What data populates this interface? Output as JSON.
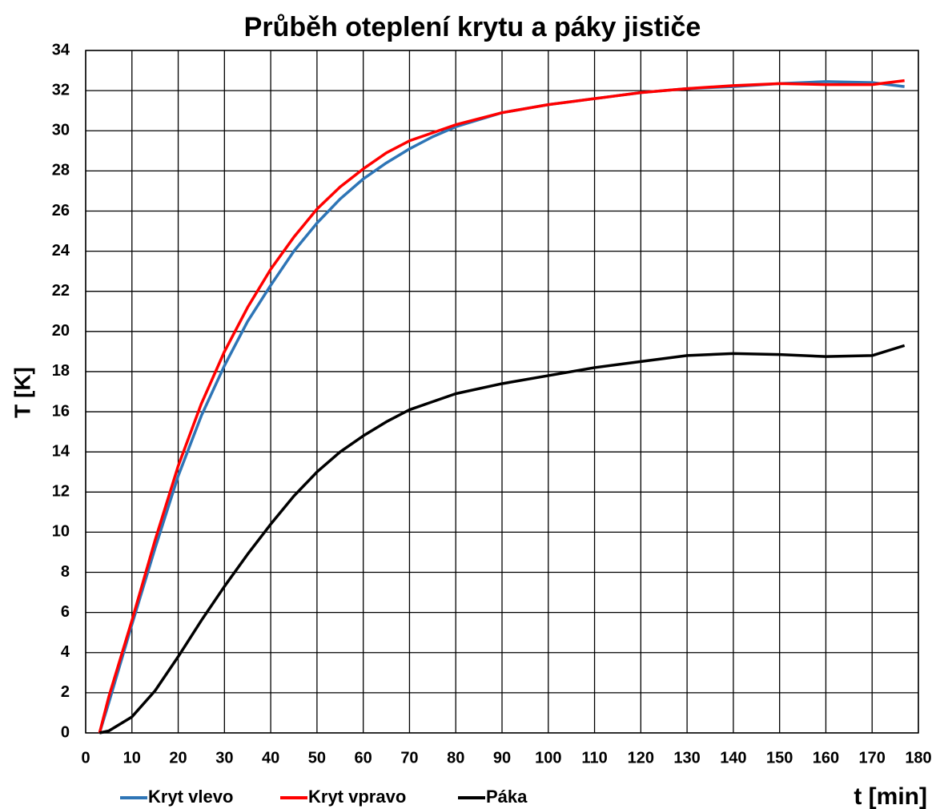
{
  "chart_data": {
    "type": "line",
    "title": "Průběh oteplení krytu a páky jističe",
    "x_label": "t [min]",
    "y_label": "T [K]",
    "x": [
      3,
      5,
      10,
      15,
      20,
      25,
      30,
      35,
      40,
      45,
      50,
      55,
      60,
      65,
      70,
      75,
      80,
      90,
      100,
      110,
      120,
      130,
      140,
      150,
      160,
      170,
      177
    ],
    "series": [
      {
        "name": "Kryt vlevo",
        "color": "#2e75b6",
        "values": [
          0,
          1.5,
          5.4,
          9.2,
          12.8,
          15.8,
          18.3,
          20.5,
          22.3,
          24,
          25.4,
          26.6,
          27.6,
          28.4,
          29.1,
          29.7,
          30.2,
          30.9,
          31.3,
          31.6,
          31.9,
          32.1,
          32.2,
          32.35,
          32.45,
          32.4,
          32.2
        ]
      },
      {
        "name": "Kryt vpravo",
        "color": "#ff0000",
        "values": [
          0,
          1.8,
          5.6,
          9.6,
          13.3,
          16.4,
          19.0,
          21.2,
          23.1,
          24.7,
          26.1,
          27.2,
          28.1,
          28.9,
          29.5,
          29.9,
          30.3,
          30.9,
          31.3,
          31.6,
          31.9,
          32.1,
          32.25,
          32.35,
          32.3,
          32.3,
          32.5
        ]
      },
      {
        "name": "Páka",
        "color": "#000000",
        "values": [
          0,
          0.1,
          0.8,
          2.1,
          3.8,
          5.6,
          7.3,
          8.9,
          10.4,
          11.8,
          13.0,
          14.0,
          14.8,
          15.5,
          16.1,
          16.5,
          16.9,
          17.4,
          17.8,
          18.2,
          18.5,
          18.8,
          18.9,
          18.85,
          18.75,
          18.8,
          19.3
        ]
      }
    ],
    "xlim": [
      0,
      180
    ],
    "xticks": [
      0,
      10,
      20,
      30,
      40,
      50,
      60,
      70,
      80,
      90,
      100,
      110,
      120,
      130,
      140,
      150,
      160,
      170,
      180
    ],
    "ylim": [
      0,
      34
    ],
    "yticks": [
      0,
      2,
      4,
      6,
      8,
      10,
      12,
      14,
      16,
      18,
      20,
      22,
      24,
      26,
      28,
      30,
      32,
      34
    ],
    "grid": true,
    "legend": "bottom-left"
  }
}
